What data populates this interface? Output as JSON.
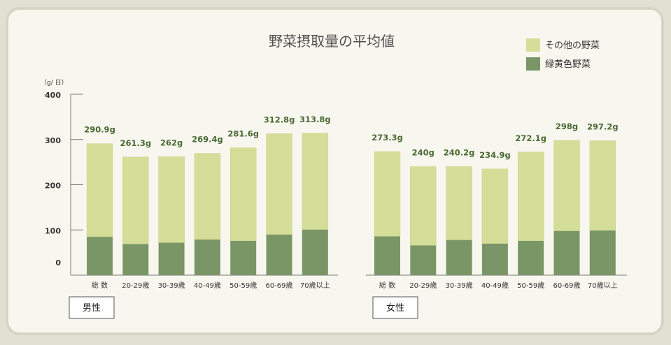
{
  "chart_data": {
    "type": "bar",
    "stacked": true,
    "title": "野菜摂取量の平均値",
    "unit_label": "（g/ 日）",
    "ylim": [
      0,
      400
    ],
    "yticks": [
      "400",
      "300",
      "200",
      "100",
      "0"
    ],
    "grid": false,
    "legend_position": "top-right",
    "colors": {
      "その他の野菜": "#d5de98",
      "緑黄色野菜": "#7a9566",
      "value_label": "#4a6a33"
    },
    "groups": [
      {
        "name": "男性",
        "categories": [
          "総 数",
          "20-29歳",
          "30-39歳",
          "40-49歳",
          "50-59歳",
          "60-69歳",
          "70歳以上"
        ],
        "series": [
          {
            "name": "緑黄色野菜",
            "values": [
              85,
              69,
              72,
              79,
              76,
              90,
              101
            ]
          },
          {
            "name": "その他の野菜",
            "values": [
              205.9,
              192.3,
              190,
              190.4,
              205.6,
              222.8,
              212.8
            ]
          }
        ],
        "totals": [
          290.9,
          261.3,
          262,
          269.4,
          281.6,
          312.8,
          313.8
        ],
        "total_labels": [
          "290.9g",
          "261.3g",
          "262g",
          "269.4g",
          "281.6g",
          "312.8g",
          "313.8g"
        ]
      },
      {
        "name": "女性",
        "categories": [
          "総 数",
          "20-29歳",
          "30-39歳",
          "40-49歳",
          "50-59歳",
          "60-69歳",
          "70歳以上"
        ],
        "series": [
          {
            "name": "緑黄色野菜",
            "values": [
              86,
              66,
              78,
              70,
              76,
              98,
              99
            ]
          },
          {
            "name": "その他の野菜",
            "values": [
              187.3,
              174,
              162.2,
              164.9,
              196.1,
              200,
              198.2
            ]
          }
        ],
        "totals": [
          273.3,
          240,
          240.2,
          234.9,
          272.1,
          298,
          297.2
        ],
        "total_labels": [
          "273.3g",
          "240g",
          "240.2g",
          "234.9g",
          "272.1g",
          "298g",
          "297.2g"
        ]
      }
    ]
  }
}
